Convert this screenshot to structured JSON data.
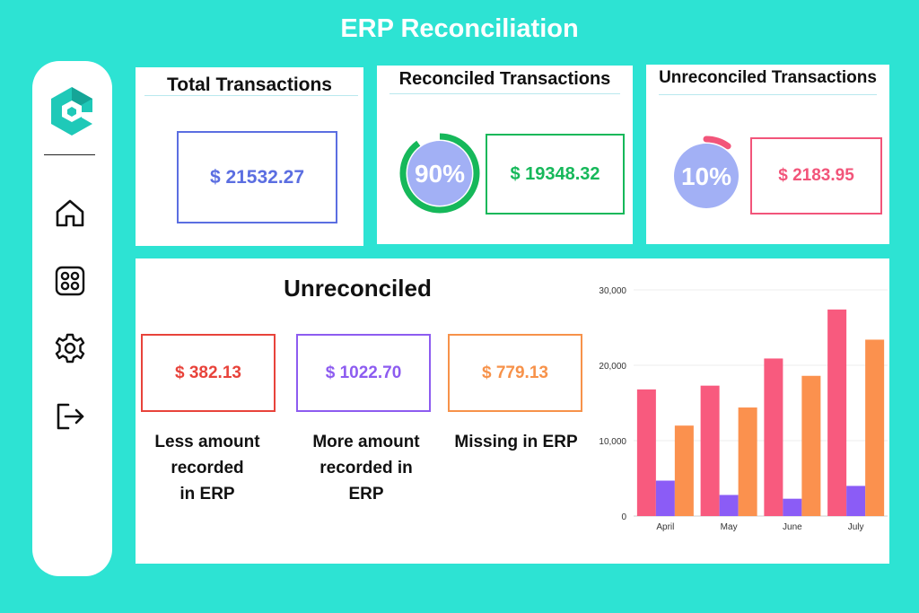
{
  "header": {
    "title": "ERP Reconciliation"
  },
  "sidebar": {
    "logo": "brand-logo",
    "items": [
      {
        "name": "home",
        "icon": "home-icon"
      },
      {
        "name": "dashboard",
        "icon": "grid-icon"
      },
      {
        "name": "settings",
        "icon": "gear-icon"
      },
      {
        "name": "logout",
        "icon": "logout-icon"
      }
    ]
  },
  "cards": {
    "total": {
      "title": "Total Transactions",
      "value": "$ 21532.27",
      "color": "#5b6ee1"
    },
    "reconciled": {
      "title": "Reconciled Transactions",
      "value": "$ 19348.32",
      "percent_label": "90%",
      "percent": 90,
      "color": "#16b85a"
    },
    "unreconciled": {
      "title": "Unreconciled Transactions",
      "value": "$ 2183.95",
      "percent_label": "10%",
      "percent": 10,
      "color": "#f2557a"
    }
  },
  "breakdown": {
    "title": "Unreconciled",
    "items": [
      {
        "value": "$ 382.13",
        "label_lines": [
          "Less amount",
          "recorded",
          "in ERP"
        ],
        "color": "#e8433b"
      },
      {
        "value": "$ 1022.70",
        "label_lines": [
          "More amount",
          "recorded in",
          "ERP"
        ],
        "color": "#8d5cf0"
      },
      {
        "value": "$ 779.13",
        "label_lines": [
          "Missing in ERP"
        ],
        "color": "#f7924a"
      }
    ]
  },
  "chart_data": {
    "type": "bar",
    "categories": [
      "April",
      "May",
      "June",
      "July"
    ],
    "series": [
      {
        "values": [
          16800,
          17300,
          20900,
          27400
        ],
        "color": "#f85a7e"
      },
      {
        "values": [
          4700,
          2800,
          2300,
          4000
        ],
        "color": "#8b5cf6"
      },
      {
        "values": [
          12000,
          14400,
          18600,
          23400
        ],
        "color": "#fb914e"
      }
    ],
    "yticks": [
      "0",
      "10,000",
      "20,000",
      "30,000"
    ],
    "ylim": [
      0,
      30000
    ],
    "grid": true
  }
}
